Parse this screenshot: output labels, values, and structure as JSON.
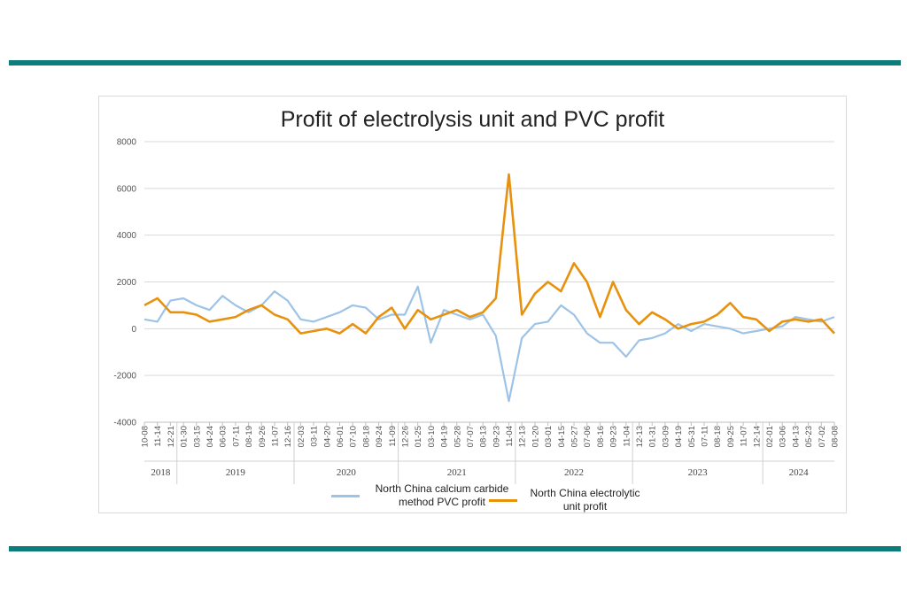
{
  "colors": {
    "rule": "#0e7c7b",
    "series1": "#9dc3e6",
    "series2": "#e8910c",
    "grid": "#d9d9d9"
  },
  "chart_data": {
    "type": "line",
    "title": "Profit of electrolysis unit and PVC profit",
    "ylim": [
      -4000,
      8000
    ],
    "yticks": [
      "8000",
      "6000",
      "4000",
      "2000",
      "0",
      "-2000",
      "-4000"
    ],
    "ytick_values": [
      8000,
      6000,
      4000,
      2000,
      0,
      -2000,
      -4000
    ],
    "grid": true,
    "legend_position": "bottom",
    "x_tick_labels": [
      "10-08",
      "11-14",
      "12-21",
      "01-30",
      "03-15",
      "04-24",
      "06-03",
      "07-11",
      "08-19",
      "09-26",
      "11-07",
      "12-16",
      "02-03",
      "03-11",
      "04-20",
      "06-01",
      "07-10",
      "08-18",
      "09-24",
      "11-09",
      "12-26",
      "01-25",
      "03-10",
      "04-19",
      "05-28",
      "07-07",
      "08-13",
      "09-23",
      "11-04",
      "12-13",
      "01-20",
      "03-01",
      "04-15",
      "05-27",
      "07-06",
      "08-16",
      "09-23",
      "11-04",
      "12-13",
      "01-31",
      "03-09",
      "04-19",
      "05-31",
      "07-11",
      "08-18",
      "09-25",
      "11-07",
      "12-14",
      "02-01",
      "03-06",
      "04-13",
      "05-23",
      "07-02",
      "08-08"
    ],
    "years": [
      {
        "label": "2018",
        "start": 0,
        "end": 2.5
      },
      {
        "label": "2019",
        "start": 2.5,
        "end": 11.5
      },
      {
        "label": "2020",
        "start": 11.5,
        "end": 19.5
      },
      {
        "label": "2021",
        "start": 19.5,
        "end": 28.5
      },
      {
        "label": "2022",
        "start": 28.5,
        "end": 37.5
      },
      {
        "label": "2023",
        "start": 37.5,
        "end": 47.5
      },
      {
        "label": "2024",
        "start": 47.5,
        "end": 53
      }
    ],
    "series": [
      {
        "name": "North China calcium carbide method PVC profit",
        "values": [
          400,
          300,
          1200,
          1300,
          1000,
          800,
          1400,
          1000,
          700,
          1000,
          1600,
          1200,
          400,
          300,
          500,
          700,
          1000,
          900,
          400,
          600,
          600,
          1800,
          -600,
          800,
          600,
          400,
          600,
          -300,
          -3100,
          -400,
          200,
          300,
          1000,
          600,
          -200,
          -600,
          -600,
          -1200,
          -500,
          -400,
          -200,
          200,
          -100,
          200,
          100,
          0,
          -200,
          -100,
          0,
          100,
          500,
          400,
          300,
          500
        ],
        "x": [
          0,
          1,
          2,
          3,
          4,
          5,
          6,
          7,
          8,
          9,
          10,
          11,
          12,
          13,
          14,
          15,
          16,
          17,
          18,
          19,
          20,
          21,
          22,
          23,
          24,
          25,
          26,
          27,
          28,
          29,
          30,
          31,
          32,
          33,
          34,
          35,
          36,
          37,
          38,
          39,
          40,
          41,
          42,
          43,
          44,
          45,
          46,
          47,
          48,
          49,
          50,
          51,
          52,
          53
        ]
      },
      {
        "name": "North China electrolytic unit profit",
        "values": [
          1000,
          1300,
          700,
          700,
          600,
          300,
          400,
          500,
          800,
          1000,
          600,
          400,
          -200,
          -100,
          0,
          -200,
          200,
          -200,
          500,
          900,
          0,
          800,
          400,
          600,
          800,
          500,
          700,
          1300,
          6600,
          600,
          1500,
          2000,
          1600,
          2800,
          2000,
          500,
          2000,
          800,
          200,
          700,
          400,
          0,
          200,
          300,
          600,
          1100,
          500,
          400,
          -100,
          300,
          400,
          300,
          400,
          -200
        ],
        "x": [
          0,
          1,
          2,
          3,
          4,
          5,
          6,
          7,
          8,
          9,
          10,
          11,
          12,
          13,
          14,
          15,
          16,
          17,
          18,
          19,
          20,
          21,
          22,
          23,
          24,
          25,
          26,
          27,
          28,
          29,
          30,
          31,
          32,
          33,
          34,
          35,
          36,
          37,
          38,
          39,
          40,
          41,
          42,
          43,
          44,
          45,
          46,
          47,
          48,
          49,
          50,
          51,
          52,
          53
        ]
      }
    ]
  }
}
